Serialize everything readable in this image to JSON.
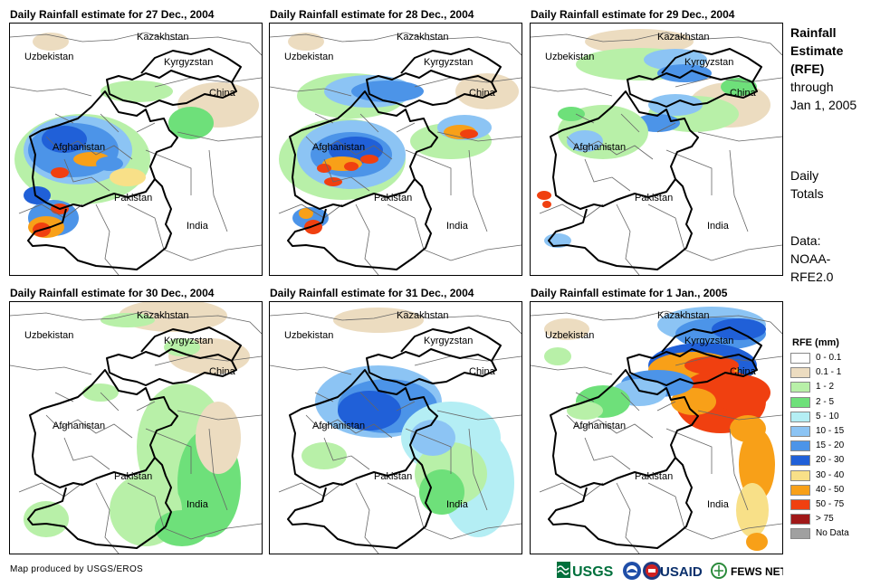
{
  "panels": [
    {
      "title": "Daily Rainfall estimate for 27 Dec., 2004",
      "intensity": "heavy-sw"
    },
    {
      "title": "Daily Rainfall estimate for 28 Dec., 2004",
      "intensity": "heavy-ne"
    },
    {
      "title": "Daily Rainfall estimate for 29 Dec., 2004",
      "intensity": "moderate"
    },
    {
      "title": "Daily Rainfall estimate for 30 Dec., 2004",
      "intensity": "light"
    },
    {
      "title": "Daily Rainfall estimate for 31 Dec., 2004",
      "intensity": "moderate-south"
    },
    {
      "title": "Daily Rainfall estimate for 1 Jan., 2005",
      "intensity": "heavy-china"
    }
  ],
  "place_labels": {
    "kazakhstan": "Kazakhstan",
    "uzbekistan": "Uzbekistan",
    "kyrgyzstan": "Kyrgyzstan",
    "china": "China",
    "afghanistan": "Afghanistan",
    "pakistan": "Pakistan",
    "india": "India"
  },
  "side": {
    "title_line1": "Rainfall",
    "title_line2": "Estimate",
    "title_line3": "(RFE)",
    "through": "through",
    "date": "Jan 1, 2005",
    "daily": "Daily",
    "totals": "Totals",
    "data_label": "Data:",
    "data_source_1": "NOAA-",
    "data_source_2": "RFE2.0"
  },
  "legend": {
    "title": "RFE (mm)",
    "items": [
      {
        "label": "0 - 0.1",
        "color": "#ffffff"
      },
      {
        "label": "0.1 - 1",
        "color": "#ecdcc0"
      },
      {
        "label": "1 - 2",
        "color": "#b8f0a8"
      },
      {
        "label": "2 - 5",
        "color": "#6ee07a"
      },
      {
        "label": "5 - 10",
        "color": "#b4eef4"
      },
      {
        "label": "10 - 15",
        "color": "#8cc4f4"
      },
      {
        "label": "15 - 20",
        "color": "#4c94e8"
      },
      {
        "label": "20 - 30",
        "color": "#2060d8"
      },
      {
        "label": "30 - 40",
        "color": "#f8e088"
      },
      {
        "label": "40 - 50",
        "color": "#f8a018"
      },
      {
        "label": "50 - 75",
        "color": "#f04010"
      },
      {
        "label": "> 75",
        "color": "#a01818"
      },
      {
        "label": "No Data",
        "color": "#a0a0a0"
      }
    ]
  },
  "credit": "Map produced by USGS/EROS",
  "logos": {
    "usgs": "USGS",
    "usaid": "USAID",
    "fews": "FEWS NET"
  }
}
